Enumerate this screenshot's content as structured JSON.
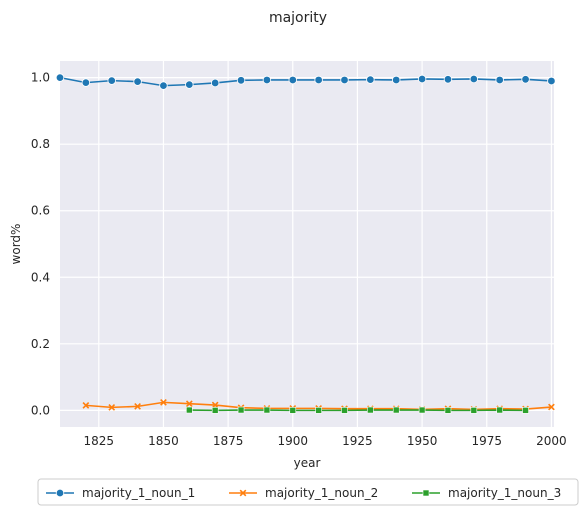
{
  "chart_data": {
    "type": "line",
    "title": "majority",
    "xlabel": "year",
    "ylabel": "word%",
    "xlim": [
      1810,
      2001
    ],
    "ylim": [
      -0.05,
      1.05
    ],
    "xticks": [
      1825,
      1850,
      1875,
      1900,
      1925,
      1950,
      1975,
      2000
    ],
    "yticks": [
      0.0,
      0.2,
      0.4,
      0.6,
      0.8,
      1.0
    ],
    "ytick_labels": [
      "0.0",
      "0.2",
      "0.4",
      "0.6",
      "0.8",
      "1.0"
    ],
    "grid": true,
    "legend_position": "bottom-center",
    "series": [
      {
        "name": "majority_1_noun_1",
        "color": "#1f77b4",
        "marker": "circle",
        "x": [
          1810,
          1820,
          1830,
          1840,
          1850,
          1860,
          1870,
          1880,
          1890,
          1900,
          1910,
          1920,
          1930,
          1940,
          1950,
          1960,
          1970,
          1980,
          1990,
          2000
        ],
        "y": [
          1.0,
          0.985,
          0.991,
          0.988,
          0.976,
          0.979,
          0.984,
          0.992,
          0.993,
          0.993,
          0.993,
          0.993,
          0.994,
          0.993,
          0.996,
          0.995,
          0.996,
          0.993,
          0.995,
          0.99
        ]
      },
      {
        "name": "majority_1_noun_2",
        "color": "#ff7f0e",
        "marker": "x",
        "x": [
          1820,
          1830,
          1840,
          1850,
          1860,
          1870,
          1880,
          1890,
          1900,
          1910,
          1920,
          1930,
          1940,
          1950,
          1960,
          1970,
          1980,
          1990,
          2000
        ],
        "y": [
          0.015,
          0.009,
          0.012,
          0.024,
          0.02,
          0.016,
          0.008,
          0.006,
          0.006,
          0.006,
          0.005,
          0.005,
          0.005,
          0.003,
          0.005,
          0.003,
          0.005,
          0.004,
          0.01
        ]
      },
      {
        "name": "majority_1_noun_3",
        "color": "#2ca02c",
        "marker": "square",
        "x": [
          1860,
          1870,
          1880,
          1890,
          1900,
          1910,
          1920,
          1930,
          1940,
          1950,
          1960,
          1970,
          1980,
          1990
        ],
        "y": [
          0.001,
          0.0,
          0.001,
          0.001,
          0.0,
          0.0,
          0.0,
          0.001,
          0.001,
          0.001,
          0.0,
          0.0,
          0.001,
          0.0
        ]
      }
    ]
  }
}
